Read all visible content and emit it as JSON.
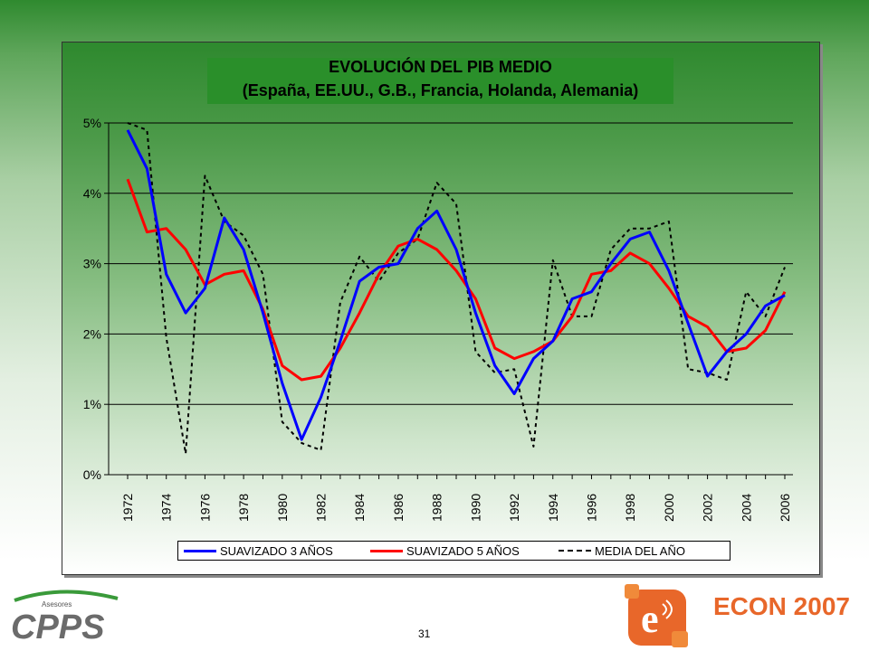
{
  "page": {
    "number": "31"
  },
  "logos": {
    "left": {
      "caption": "Asesores",
      "wordmark": "CPPS"
    },
    "right": {
      "letter": "e",
      "wordmark": "ECON 2007"
    }
  },
  "colors": {
    "title_bg": "#2a8f2a",
    "series_3y": "#0000ff",
    "series_5y": "#ff0000",
    "series_media": "#000000",
    "econ_orange": "#e8672a"
  },
  "chart_data": {
    "type": "line",
    "title": "EVOLUCIÓN DEL PIB MEDIO",
    "subtitle": "(España, EE.UU., G.B., Francia, Holanda, Alemania)",
    "xlabel": "",
    "ylabel": "",
    "ylim": [
      0,
      5
    ],
    "ytick_labels": [
      "0%",
      "1%",
      "2%",
      "3%",
      "4%",
      "5%"
    ],
    "x": [
      1972,
      1973,
      1974,
      1975,
      1976,
      1977,
      1978,
      1979,
      1980,
      1981,
      1982,
      1983,
      1984,
      1985,
      1986,
      1987,
      1988,
      1989,
      1990,
      1991,
      1992,
      1993,
      1994,
      1995,
      1996,
      1997,
      1998,
      1999,
      2000,
      2001,
      2002,
      2003,
      2004,
      2005,
      2006
    ],
    "xtick_labels": [
      "1972",
      "1974",
      "1976",
      "1978",
      "1980",
      "1982",
      "1984",
      "1986",
      "1988",
      "1990",
      "1992",
      "1994",
      "1996",
      "1998",
      "2000",
      "2002",
      "2004",
      "2006"
    ],
    "grid": "horizontal",
    "legend_position": "bottom",
    "series": [
      {
        "name": "SUAVIZADO 3 AÑOS",
        "style": "solid",
        "values": [
          4.9,
          4.35,
          2.85,
          2.3,
          2.65,
          3.65,
          3.2,
          2.3,
          1.3,
          0.5,
          1.1,
          1.9,
          2.75,
          2.95,
          3.0,
          3.5,
          3.75,
          3.2,
          2.3,
          1.55,
          1.15,
          1.65,
          1.9,
          2.5,
          2.6,
          3.0,
          3.35,
          3.45,
          2.9,
          2.15,
          1.4,
          1.75,
          2.0,
          2.4,
          2.55
        ]
      },
      {
        "name": "SUAVIZADO 5 AÑOS",
        "style": "solid",
        "values": [
          4.2,
          3.45,
          3.5,
          3.2,
          2.7,
          2.85,
          2.9,
          2.35,
          1.55,
          1.35,
          1.4,
          1.8,
          2.3,
          2.85,
          3.25,
          3.35,
          3.2,
          2.9,
          2.5,
          1.8,
          1.65,
          1.75,
          1.9,
          2.25,
          2.85,
          2.9,
          3.15,
          3.0,
          2.65,
          2.25,
          2.1,
          1.75,
          1.8,
          2.05,
          2.6
        ]
      },
      {
        "name": "MEDIA DEL AÑO",
        "style": "dashed",
        "values": [
          5.0,
          4.9,
          1.95,
          0.3,
          4.25,
          3.6,
          3.4,
          2.85,
          0.75,
          0.45,
          0.35,
          2.45,
          3.1,
          2.75,
          3.15,
          3.35,
          4.15,
          3.85,
          1.75,
          1.45,
          1.5,
          0.4,
          3.05,
          2.25,
          2.25,
          3.2,
          3.5,
          3.5,
          3.6,
          1.5,
          1.45,
          1.35,
          2.6,
          2.25,
          2.95
        ]
      }
    ]
  }
}
